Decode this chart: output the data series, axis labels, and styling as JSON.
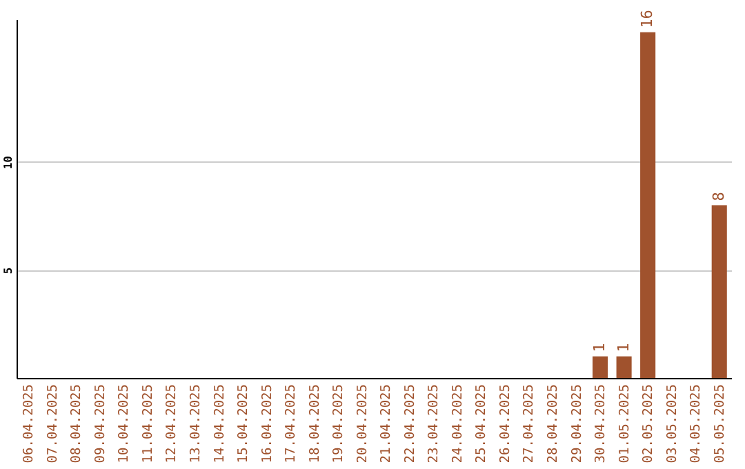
{
  "chart_data": {
    "type": "bar",
    "categories": [
      "06.04.2025",
      "07.04.2025",
      "08.04.2025",
      "09.04.2025",
      "10.04.2025",
      "11.04.2025",
      "12.04.2025",
      "13.04.2025",
      "14.04.2025",
      "15.04.2025",
      "16.04.2025",
      "17.04.2025",
      "18.04.2025",
      "19.04.2025",
      "20.04.2025",
      "21.04.2025",
      "22.04.2025",
      "23.04.2025",
      "24.04.2025",
      "25.04.2025",
      "26.04.2025",
      "27.04.2025",
      "28.04.2025",
      "29.04.2025",
      "30.04.2025",
      "01.05.2025",
      "02.05.2025",
      "03.05.2025",
      "04.05.2025",
      "05.05.2025"
    ],
    "values": [
      0,
      0,
      0,
      0,
      0,
      0,
      0,
      0,
      0,
      0,
      0,
      0,
      0,
      0,
      0,
      0,
      0,
      0,
      0,
      0,
      0,
      0,
      0,
      0,
      1,
      1,
      16,
      0,
      0,
      8
    ],
    "value_labels": [
      null,
      null,
      null,
      null,
      null,
      null,
      null,
      null,
      null,
      null,
      null,
      null,
      null,
      null,
      null,
      null,
      null,
      null,
      null,
      null,
      null,
      null,
      null,
      null,
      "1",
      "1",
      "16",
      null,
      null,
      "8"
    ],
    "color": "#a0522d",
    "ylim": [
      0,
      16.6
    ],
    "yticks": [
      5,
      10
    ],
    "grid": "y"
  }
}
